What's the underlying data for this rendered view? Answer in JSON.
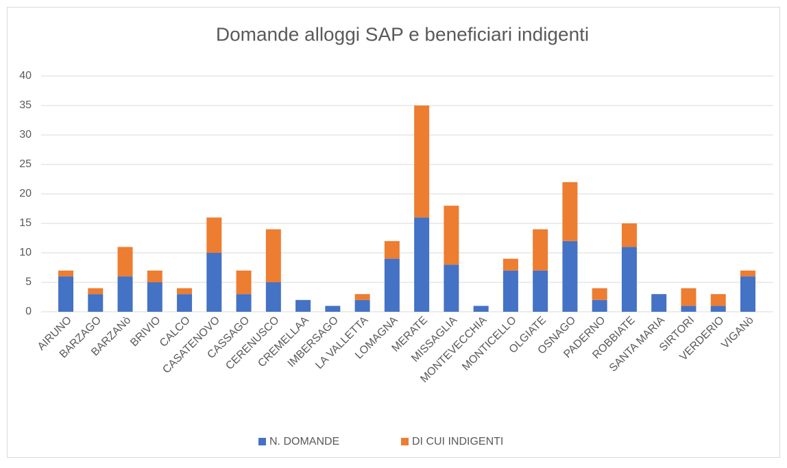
{
  "chart_data": {
    "type": "stacked_bar",
    "title": "Domande alloggi SAP e beneficiari indigenti",
    "categories": [
      "AIRUNO",
      "BARZAGO",
      "BARZANò",
      "BRIVIO",
      "CALCO",
      "CASATENOVO",
      "CASSAGO",
      "CERENUSCO",
      "CREMELLAA",
      "IMBERSAGO",
      "LA VALLETTA",
      "LOMAGNA",
      "MERATE",
      "MISSAGLIA",
      "MONTEVECCHIA",
      "MONTICELLO",
      "OLGIATE",
      "OSNAGO",
      "PADERNO",
      "ROBBIATE",
      "SANTA MARIA",
      "SIRTORI",
      "VERDERIO",
      "VIGANò"
    ],
    "series": [
      {
        "name": "N. DOMANDE",
        "color": "#4472c4",
        "values": [
          6,
          3,
          6,
          5,
          3,
          10,
          3,
          5,
          2,
          1,
          2,
          9,
          16,
          8,
          1,
          7,
          7,
          12,
          2,
          11,
          3,
          1,
          1,
          6
        ]
      },
      {
        "name": "DI CUI INDIGENTI",
        "color": "#ed7d31",
        "values": [
          1,
          1,
          5,
          2,
          1,
          6,
          4,
          9,
          0,
          0,
          1,
          3,
          19,
          10,
          0,
          2,
          7,
          10,
          2,
          4,
          0,
          3,
          2,
          1
        ]
      }
    ],
    "ylim": [
      0,
      40
    ],
    "yticks": [
      0,
      5,
      10,
      15,
      20,
      25,
      30,
      35,
      40
    ],
    "grid": true,
    "legend": "bottom"
  }
}
